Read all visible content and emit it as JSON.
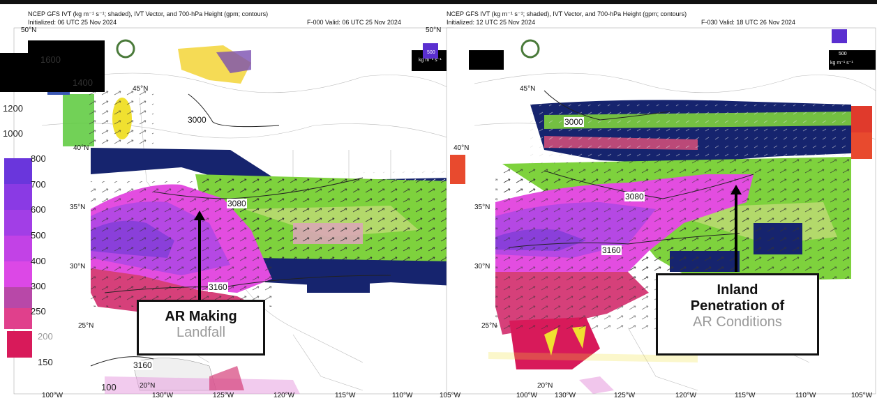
{
  "left_panel": {
    "title_line": "NCEP GFS IVT (kg m⁻¹ s⁻¹; shaded), IVT Vector, and 700-hPa Height (gpm; contours)",
    "init_line": "Initialized: 06 UTC 25 Nov 2024",
    "valid_line": "F-000  Valid: 06 UTC 25 Nov 2024",
    "lat_labels": [
      "50°N",
      "45°N",
      "40°N",
      "35°N",
      "30°N",
      "25°N",
      "20°N"
    ],
    "lon_labels": [
      "130°W",
      "125°W",
      "120°W",
      "115°W",
      "110°W",
      "105°W"
    ],
    "outer_lon_label": "100°W",
    "contour_labels": [
      "3000",
      "3080",
      "3160",
      "3160"
    ],
    "callout_bold": "AR Making",
    "callout_light": "Landfall"
  },
  "right_panel": {
    "title_line": "NCEP GFS IVT (kg m⁻¹ s⁻¹; shaded), IVT Vector, and 700-hPa Height (gpm; contours)",
    "init_line": "Initialized: 12 UTC 25 Nov 2024",
    "valid_line": "F-030  Valid: 18 UTC 26 Nov 2024",
    "lat_labels": [
      "50°N",
      "45°N",
      "40°N",
      "35°N",
      "30°N",
      "25°N",
      "20°N"
    ],
    "lon_labels": [
      "130°W",
      "125°W",
      "120°W",
      "115°W",
      "110°W",
      "105°W"
    ],
    "outer_lon_label": "100°W",
    "contour_labels": [
      "3000",
      "3080",
      "3160"
    ],
    "callout_bold_1": "Inland",
    "callout_bold_2": "Penetration of",
    "callout_light": "AR Conditions"
  },
  "colorbar": {
    "labels": [
      "1600",
      "1400",
      "1200",
      "1000",
      "800",
      "700",
      "600",
      "500",
      "400",
      "300",
      "250",
      "200",
      "150",
      "100"
    ],
    "colors": [
      "#5a2fd0",
      "#7a34e0",
      "#9a38e8",
      "#b23ce8",
      "#c840e8",
      "#dd44e8",
      "#e048b0",
      "#e0307a",
      "#d81a5a"
    ]
  },
  "inset_units_left": "kg m⁻¹ s⁻¹",
  "inset_value_left": "500",
  "inset_units_right": "kg m⁻¹ s⁻¹",
  "inset_value_right": "500"
}
